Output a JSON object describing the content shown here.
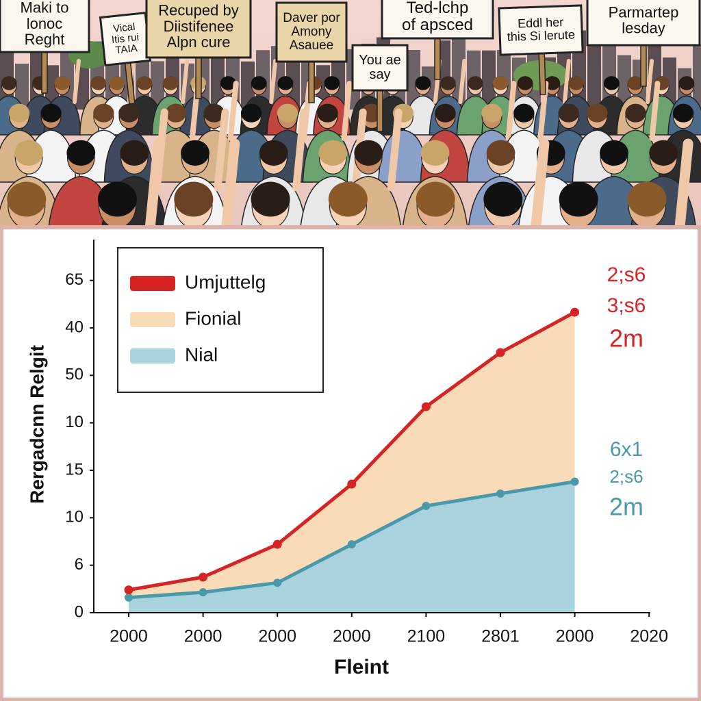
{
  "illustration": {
    "signs": [
      {
        "lines": [
          "Maki to",
          "lonoc",
          "Reght"
        ]
      },
      {
        "lines": [
          "Vical",
          "Itis rui",
          "TAIA"
        ]
      },
      {
        "lines": [
          "Recuped by",
          "Diistifenee",
          "Alpn cure"
        ]
      },
      {
        "lines": [
          "Daver por",
          "Amony",
          "Asauee"
        ]
      },
      {
        "lines": [
          "You ae",
          "say"
        ]
      },
      {
        "lines": [
          "Ted-lchp",
          "of apsced"
        ]
      },
      {
        "lines": [
          "Eddl her",
          "this Si lerute"
        ]
      },
      {
        "lines": [
          "Parmartep",
          "lesday"
        ]
      }
    ]
  },
  "chart_data": {
    "type": "line",
    "ylabel": "Rergadcnn Relgit",
    "xlabel": "Fleint",
    "categories": [
      "2000",
      "2000",
      "2000",
      "2000",
      "2100",
      "2801",
      "2000",
      "2020"
    ],
    "ylim": [
      0,
      7.86
    ],
    "yticks": [
      {
        "value": 0,
        "label": "0"
      },
      {
        "value": 1,
        "label": "6"
      },
      {
        "value": 2,
        "label": "10"
      },
      {
        "value": 3,
        "label": "15"
      },
      {
        "value": 4,
        "label": "10"
      },
      {
        "value": 5,
        "label": "50"
      },
      {
        "value": 6,
        "label": "40"
      },
      {
        "value": 7,
        "label": "65"
      }
    ],
    "legend": "top-left",
    "series": [
      {
        "name": "Umjuttelg",
        "style": "line",
        "color": "#d62424",
        "values": [
          0.48,
          0.75,
          1.44,
          2.71,
          4.34,
          5.48,
          6.33,
          null
        ]
      },
      {
        "name": "Fionial",
        "style": "area",
        "color": "#f9dbb8",
        "values": [
          0.48,
          0.75,
          1.44,
          2.71,
          4.34,
          5.48,
          6.33,
          null
        ]
      },
      {
        "name": "Nial",
        "style": "area",
        "color": "#a8d3dd",
        "line_color": "#4a99ab",
        "values": [
          0.32,
          0.43,
          0.63,
          1.44,
          2.25,
          2.51,
          2.76,
          null
        ]
      }
    ],
    "annotations": [
      {
        "text": "2;s6",
        "color": "#d62424"
      },
      {
        "text": "3;s6",
        "color": "#d62424"
      },
      {
        "text": "2m",
        "color": "#d62424"
      },
      {
        "text": "6x1",
        "color": "#4a99ab"
      },
      {
        "text": "2;s6",
        "color": "#4a99ab"
      },
      {
        "text": "2m",
        "color": "#4a99ab"
      }
    ]
  }
}
